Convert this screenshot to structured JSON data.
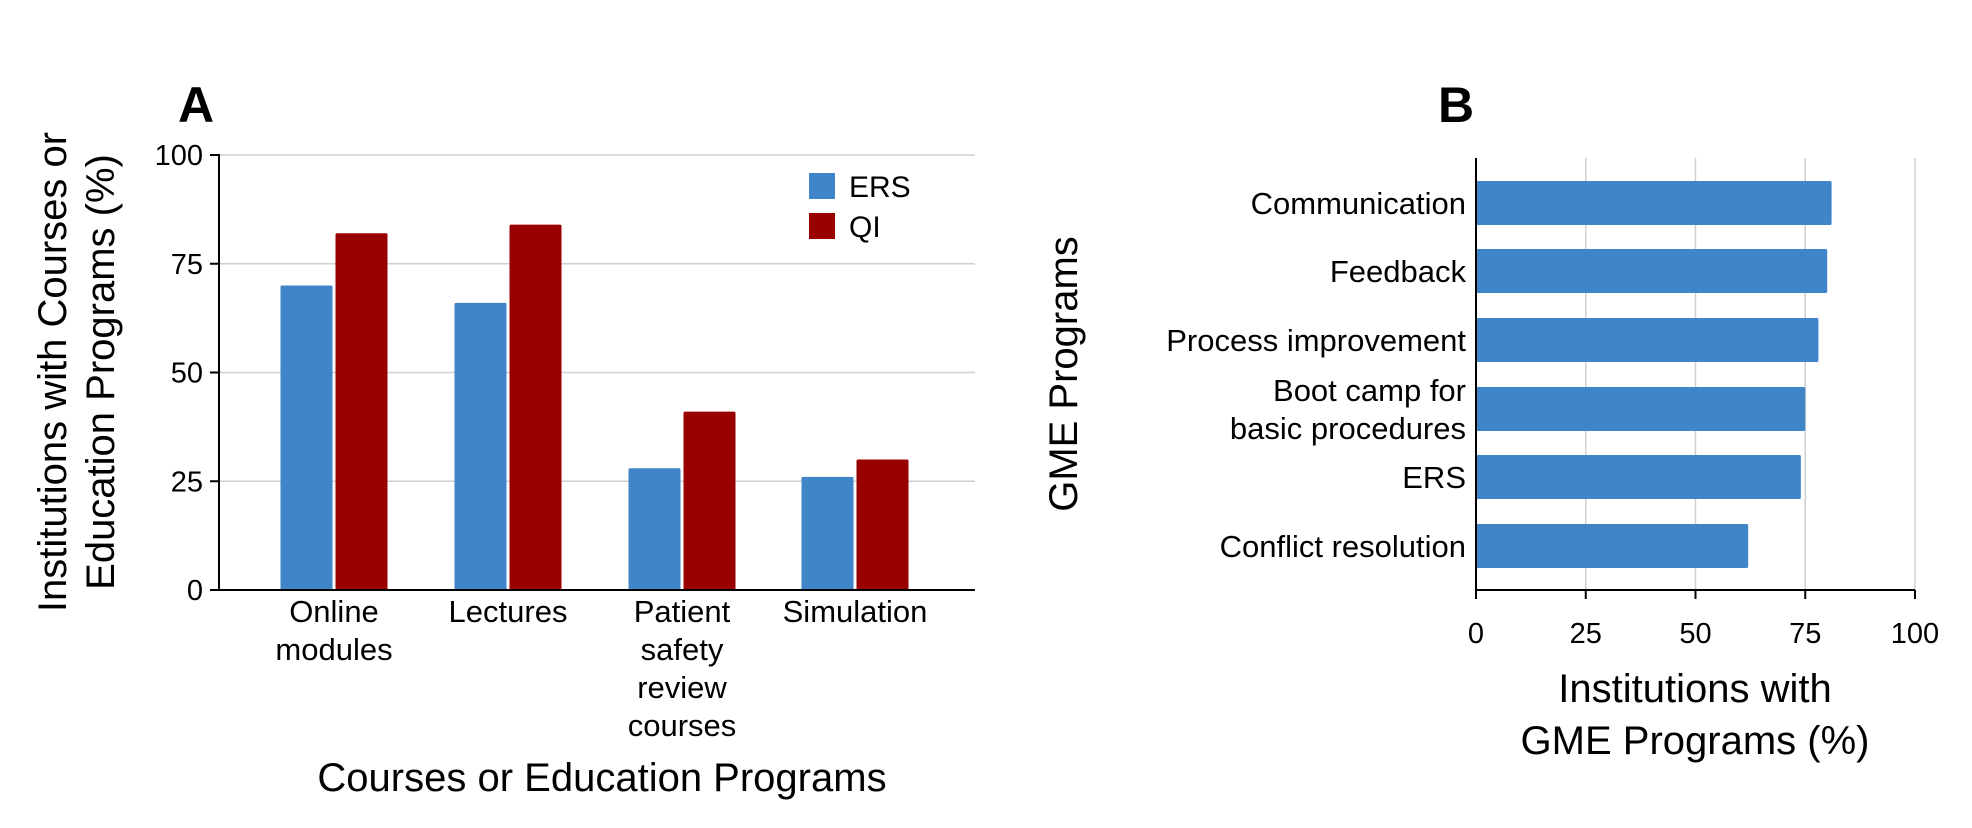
{
  "chart_data": [
    {
      "panel": "A",
      "type": "bar",
      "orientation": "vertical",
      "categories": [
        "Online\nmodules",
        "Lectures",
        "Patient\nsafety\nreview\ncourses",
        "Simulation"
      ],
      "series": [
        {
          "name": "ERS",
          "color": "#3f85c8",
          "values": [
            70,
            66,
            28,
            26
          ]
        },
        {
          "name": "QI",
          "color": "#990000",
          "values": [
            82,
            84,
            41,
            30
          ]
        }
      ],
      "xlabel": "Courses or Education Programs",
      "ylabel": "Institutions with Courses or Education Programs (%)",
      "ylim": [
        0,
        100
      ],
      "yticks": [
        "0",
        "25",
        "50",
        "75",
        "100"
      ],
      "grid": "horizontal",
      "legend": "top-right"
    },
    {
      "panel": "B",
      "type": "bar",
      "orientation": "horizontal",
      "categories": [
        "Communication",
        "Feedback",
        "Process improvement",
        "Boot camp for\nbasic procedures",
        "ERS",
        "Conflict resolution"
      ],
      "series": [
        {
          "color": "#3f85c8",
          "values": [
            81,
            80,
            78,
            75,
            74,
            62
          ]
        }
      ],
      "xlabel": "Institutions with\nGME Programs (%)",
      "ylabel": "GME Programs",
      "xlim": [
        0,
        100
      ],
      "xticks": [
        "0",
        "25",
        "50",
        "75",
        "100"
      ],
      "grid": "vertical"
    }
  ]
}
